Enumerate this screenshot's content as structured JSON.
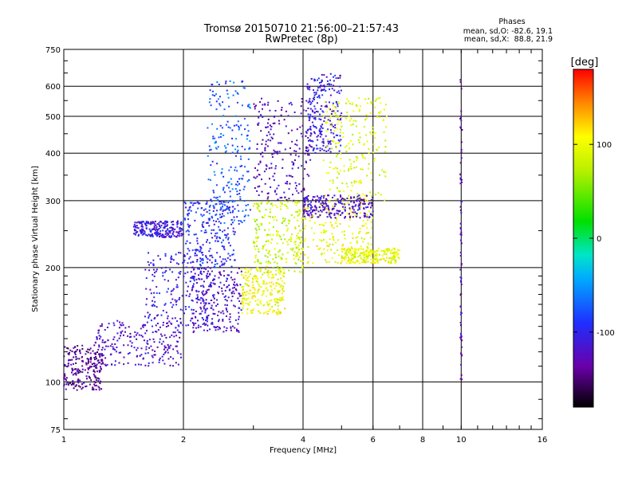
{
  "chart_data": {
    "type": "scatter",
    "title": "Tromsø 20150710 21:56:00–21:57:43",
    "subtitle": "RwPretec (8p)",
    "stats": {
      "header": "Phases",
      "o_line": "mean, sd,O: -82.6, 19.1",
      "x_line": "mean, sd,X:  88.8, 21.9"
    },
    "xlabel": "Frequency [MHz]",
    "ylabel": "Stationary phase Virtual Height [km]",
    "x_scale": "log",
    "y_scale": "log",
    "xlim": [
      1,
      16
    ],
    "ylim": [
      75,
      750
    ],
    "x_ticks": [
      1,
      2,
      4,
      6,
      8,
      10,
      16
    ],
    "x_gridlines": [
      2,
      4,
      6,
      8,
      10
    ],
    "y_ticks": [
      75,
      100,
      200,
      300,
      400,
      500,
      600,
      750
    ],
    "y_gridlines": [
      100,
      200,
      300,
      400,
      500,
      600
    ],
    "grid": true,
    "colorbar": {
      "label": "[deg]",
      "min": -180,
      "max": 180,
      "ticks": [
        100,
        0,
        -100
      ]
    },
    "clusters": [
      {
        "x": [
          1.0,
          1.25
        ],
        "y": [
          95,
          125
        ],
        "phase": -140
      },
      {
        "x": [
          1.2,
          2.0
        ],
        "y": [
          110,
          145
        ],
        "phase": -120
      },
      {
        "x": [
          1.6,
          2.4
        ],
        "y": [
          140,
          220
        ],
        "phase": -105
      },
      {
        "x": [
          2.0,
          2.7
        ],
        "y": [
          200,
          300
        ],
        "phase": -95
      },
      {
        "x": [
          1.5,
          2.0
        ],
        "y": [
          240,
          265
        ],
        "phase": -110
      },
      {
        "x": [
          2.3,
          2.95
        ],
        "y": [
          260,
          620
        ],
        "phase": -75
      },
      {
        "x": [
          2.1,
          2.8
        ],
        "y": [
          135,
          200
        ],
        "phase": -120
      },
      {
        "x": [
          2.8,
          3.6
        ],
        "y": [
          150,
          200
        ],
        "phase": 100
      },
      {
        "x": [
          3.0,
          4.0
        ],
        "y": [
          190,
          300
        ],
        "phase": 80
      },
      {
        "x": [
          3.0,
          4.2
        ],
        "y": [
          300,
          560
        ],
        "phase": -125
      },
      {
        "x": [
          4.1,
          5.0
        ],
        "y": [
          400,
          650
        ],
        "phase": -105
      },
      {
        "x": [
          4.5,
          6.5
        ],
        "y": [
          300,
          560
        ],
        "phase": 90
      },
      {
        "x": [
          3.8,
          6.0
        ],
        "y": [
          205,
          300
        ],
        "phase": 100
      },
      {
        "x": [
          4.0,
          6.0
        ],
        "y": [
          270,
          310
        ],
        "phase": -120
      },
      {
        "x": [
          5.0,
          7.0
        ],
        "y": [
          205,
          225
        ],
        "phase": 95
      }
    ],
    "lines": [
      {
        "x": [
          9.95,
          10.05
        ],
        "y": [
          100,
          640
        ],
        "phase": -130
      }
    ]
  }
}
